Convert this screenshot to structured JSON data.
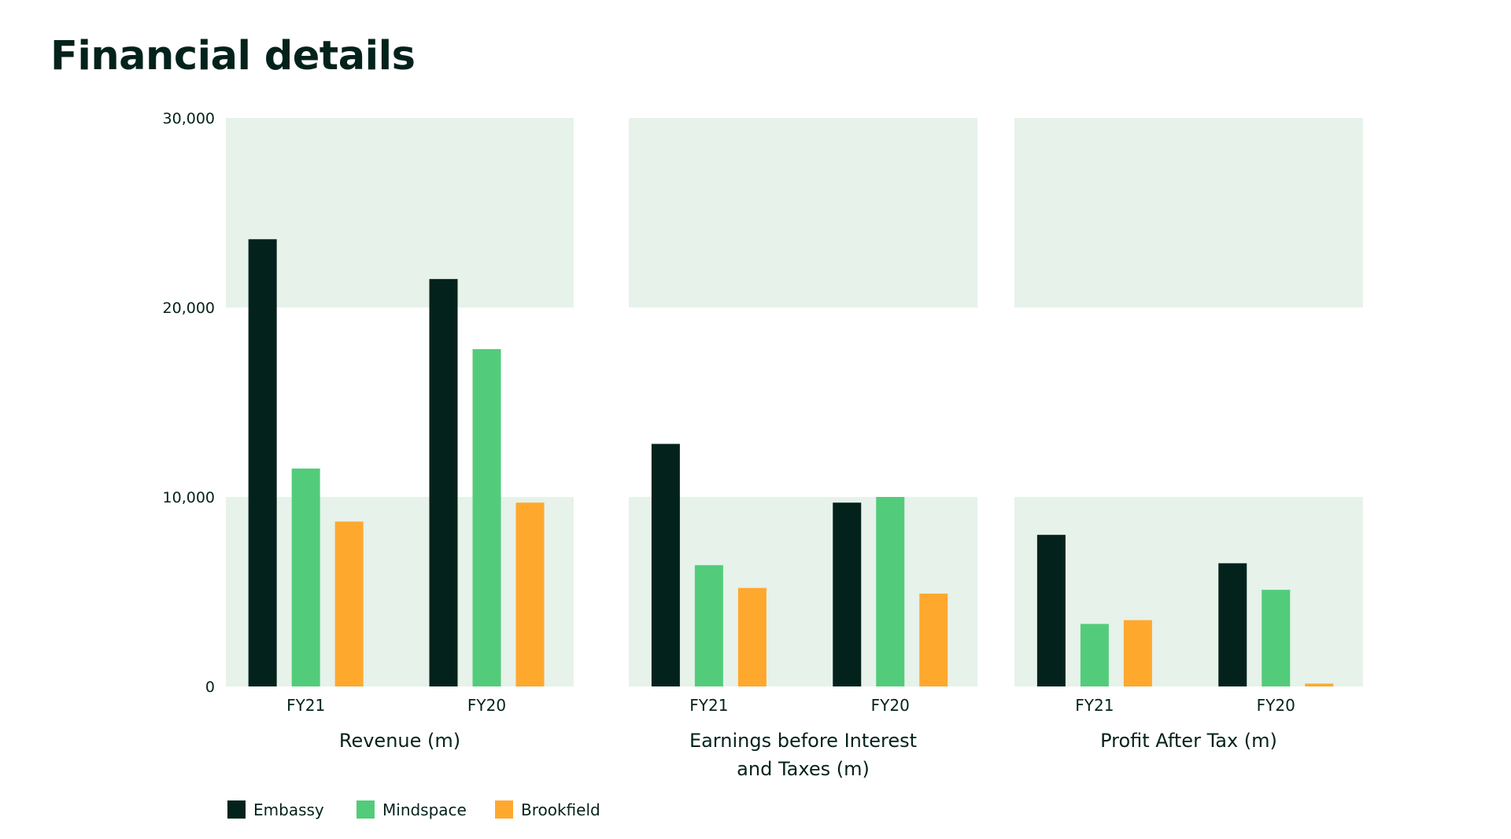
{
  "page": {
    "title": "Financial details"
  },
  "colors": {
    "background": "#ffffff",
    "band": "#e6f2ea",
    "text": "#04221c",
    "Embassy": "#04221c",
    "Mindspace": "#52cc7a",
    "Brookfield": "#ffa82e"
  },
  "chart_data": {
    "type": "bar",
    "y_axis": {
      "ticks": [
        0,
        10000,
        20000,
        30000
      ],
      "tick_labels": [
        "0",
        "10,000",
        "20,000",
        "30,000"
      ],
      "range": [
        0,
        30000
      ]
    },
    "legend": {
      "position": "bottom-left",
      "entries": [
        "Embassy",
        "Mindspace",
        "Brookfield"
      ]
    },
    "grid": "alternating horizontal bands (0–10,000 and 20,000–30,000 shaded)",
    "panels": [
      {
        "title_lines": [
          "Revenue (m)"
        ],
        "categories": [
          "FY21",
          "FY20"
        ],
        "series": [
          {
            "name": "Embassy",
            "values": [
              23600,
              21500
            ]
          },
          {
            "name": "Mindspace",
            "values": [
              11500,
              17800
            ]
          },
          {
            "name": "Brookfield",
            "values": [
              8700,
              9700
            ]
          }
        ]
      },
      {
        "title_lines": [
          "Earnings before Interest",
          "and Taxes (m)"
        ],
        "categories": [
          "FY21",
          "FY20"
        ],
        "series": [
          {
            "name": "Embassy",
            "values": [
              12800,
              9700
            ]
          },
          {
            "name": "Mindspace",
            "values": [
              6400,
              10000
            ]
          },
          {
            "name": "Brookfield",
            "values": [
              5200,
              4900
            ]
          }
        ]
      },
      {
        "title_lines": [
          "Profit After Tax (m)"
        ],
        "categories": [
          "FY21",
          "FY20"
        ],
        "series": [
          {
            "name": "Embassy",
            "values": [
              8000,
              6500
            ]
          },
          {
            "name": "Mindspace",
            "values": [
              3300,
              5100
            ]
          },
          {
            "name": "Brookfield",
            "values": [
              3500,
              150
            ]
          }
        ]
      }
    ]
  }
}
